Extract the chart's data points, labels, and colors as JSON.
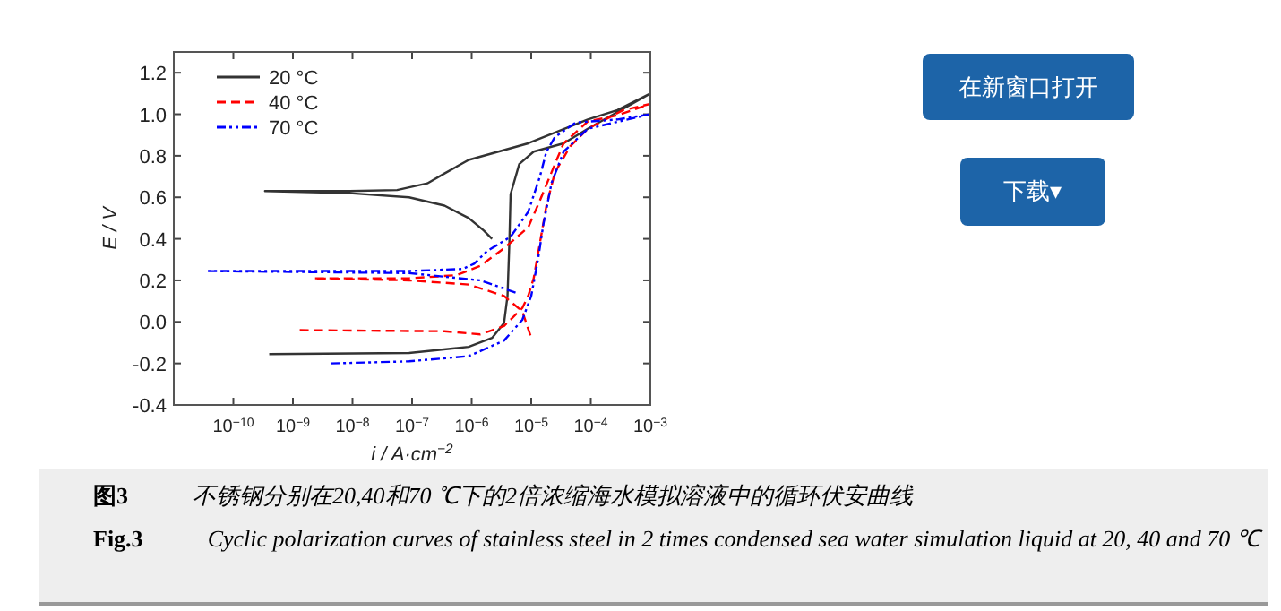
{
  "chart_data": {
    "type": "line",
    "xlabel": "i / A·cm$^{−2}$",
    "ylabel": "E / V",
    "log": "x",
    "grid": false,
    "legend": "top left",
    "marker": "none",
    "xlim": [
      1e-11,
      0.001
    ],
    "xticks": [
      {
        "value": 1e-10,
        "label": "10$^{−10}$"
      },
      {
        "value": 1e-09,
        "label": "10$^{−9}$"
      },
      {
        "value": 1e-08,
        "label": "10$^{−8}$"
      },
      {
        "value": 1e-07,
        "label": "10$^{−7}$"
      },
      {
        "value": 1e-06,
        "label": "10$^{−6}$"
      },
      {
        "value": 1e-05,
        "label": "10$^{−5}$"
      },
      {
        "value": 0.0001,
        "label": "10$^{−4}$"
      },
      {
        "value": 0.001,
        "label": "10$^{−3}$"
      }
    ],
    "ylim": [
      -0.4,
      1.3
    ],
    "yticks": [
      {
        "value": -0.4,
        "label": "-0.4"
      },
      {
        "value": -0.2,
        "label": "-0.2"
      },
      {
        "value": 0,
        "label": "0.0"
      },
      {
        "value": 0.2,
        "label": "0.2"
      },
      {
        "value": 0.4,
        "label": "0.4"
      },
      {
        "value": 0.6,
        "label": "0.6"
      },
      {
        "value": 0.8,
        "label": "0.8"
      },
      {
        "value": 1.0,
        "label": "1.0"
      },
      {
        "value": 1.2,
        "label": "1.2"
      }
    ],
    "series": [
      {
        "name": "20 °C",
        "color": "#333333",
        "line_style": "solid",
        "x": [
          4e-10,
          8.9e-08,
          8.9e-07,
          2.2e-06,
          3.5e-06,
          4e-06,
          4.3e-06,
          4.5e-06,
          6.3e-06,
          1.1e-05,
          3.5e-05,
          8.9e-05,
          0.001,
          0.00028,
          8.9e-05,
          8.9e-06,
          8.9e-07,
          3.5e-07,
          1.8e-07,
          5.6e-08,
          8.9e-09,
          3.4e-10,
          8.9e-09,
          8.9e-08,
          3.5e-07,
          8.9e-07,
          1.6e-06,
          2.2e-06
        ],
        "values": [
          -0.155,
          -0.15,
          -0.12,
          -0.077,
          -0.005,
          0.125,
          0.384,
          0.615,
          0.76,
          0.82,
          0.86,
          0.93,
          1.1,
          1.02,
          0.975,
          0.86,
          0.78,
          0.715,
          0.667,
          0.635,
          0.63,
          0.63,
          0.62,
          0.6,
          0.56,
          0.5,
          0.44,
          0.4
        ]
      },
      {
        "name": "40 °C",
        "color": "#ff0000",
        "line_style": "dashed",
        "x": [
          1.3e-09,
          3.5e-07,
          1.4e-06,
          3.5e-06,
          7.1e-06,
          8.9e-06,
          1.1e-05,
          1.4e-05,
          1.8e-05,
          2.5e-05,
          4.5e-05,
          8.9e-05,
          0.00035,
          0.001,
          0.00028,
          8.9e-05,
          3.5e-05,
          2.5e-05,
          1.4e-05,
          8.9e-06,
          3.5e-06,
          1.4e-06,
          5.6e-07,
          8.9e-08,
          2.2e-09,
          8.9e-08,
          8.9e-07,
          3.5e-06,
          7.1e-06,
          1e-05
        ],
        "values": [
          -0.04,
          -0.045,
          -0.06,
          -0.02,
          0.067,
          0.125,
          0.21,
          0.38,
          0.56,
          0.72,
          0.845,
          0.93,
          1.02,
          1.05,
          0.995,
          0.965,
          0.86,
          0.76,
          0.585,
          0.455,
          0.355,
          0.27,
          0.225,
          0.21,
          0.21,
          0.2,
          0.18,
          0.125,
          0.05,
          -0.077
        ]
      },
      {
        "name": "70 °C",
        "color": "#0000ff",
        "line_style": "dotted",
        "x": [
          4.3e-09,
          8.9e-08,
          8.9e-07,
          3.5e-06,
          7.1e-06,
          1e-05,
          1.3e-05,
          1.6e-05,
          2.2e-05,
          3.5e-05,
          8.9e-05,
          0.001,
          0.00028,
          5.6e-05,
          2.5e-05,
          1.8e-05,
          1.4e-05,
          8.9e-06,
          4.5e-06,
          1.8e-06,
          1.1e-06,
          7.1e-07,
          8.9e-08,
          3.5e-11,
          8.9e-08,
          1.4e-06,
          5.6e-06
        ],
        "values": [
          -0.2,
          -0.19,
          -0.165,
          -0.09,
          0.01,
          0.125,
          0.3,
          0.47,
          0.67,
          0.82,
          0.93,
          1.0,
          0.975,
          0.96,
          0.89,
          0.82,
          0.7,
          0.53,
          0.41,
          0.34,
          0.28,
          0.255,
          0.245,
          0.245,
          0.235,
          0.2,
          0.14
        ]
      }
    ],
    "annotations": [
      "在新窗口打开",
      "下载▾",
      "图3",
      "不锈钢分别在20,40和70 ℃下的2倍浓缩海水模拟溶液中的循环伏安曲线",
      "Fig.3",
      "Cyclic polarization curves of stainless steel in 2 times condensed sea water simulation liquid at 20, 40 and 70 ℃"
    ]
  }
}
